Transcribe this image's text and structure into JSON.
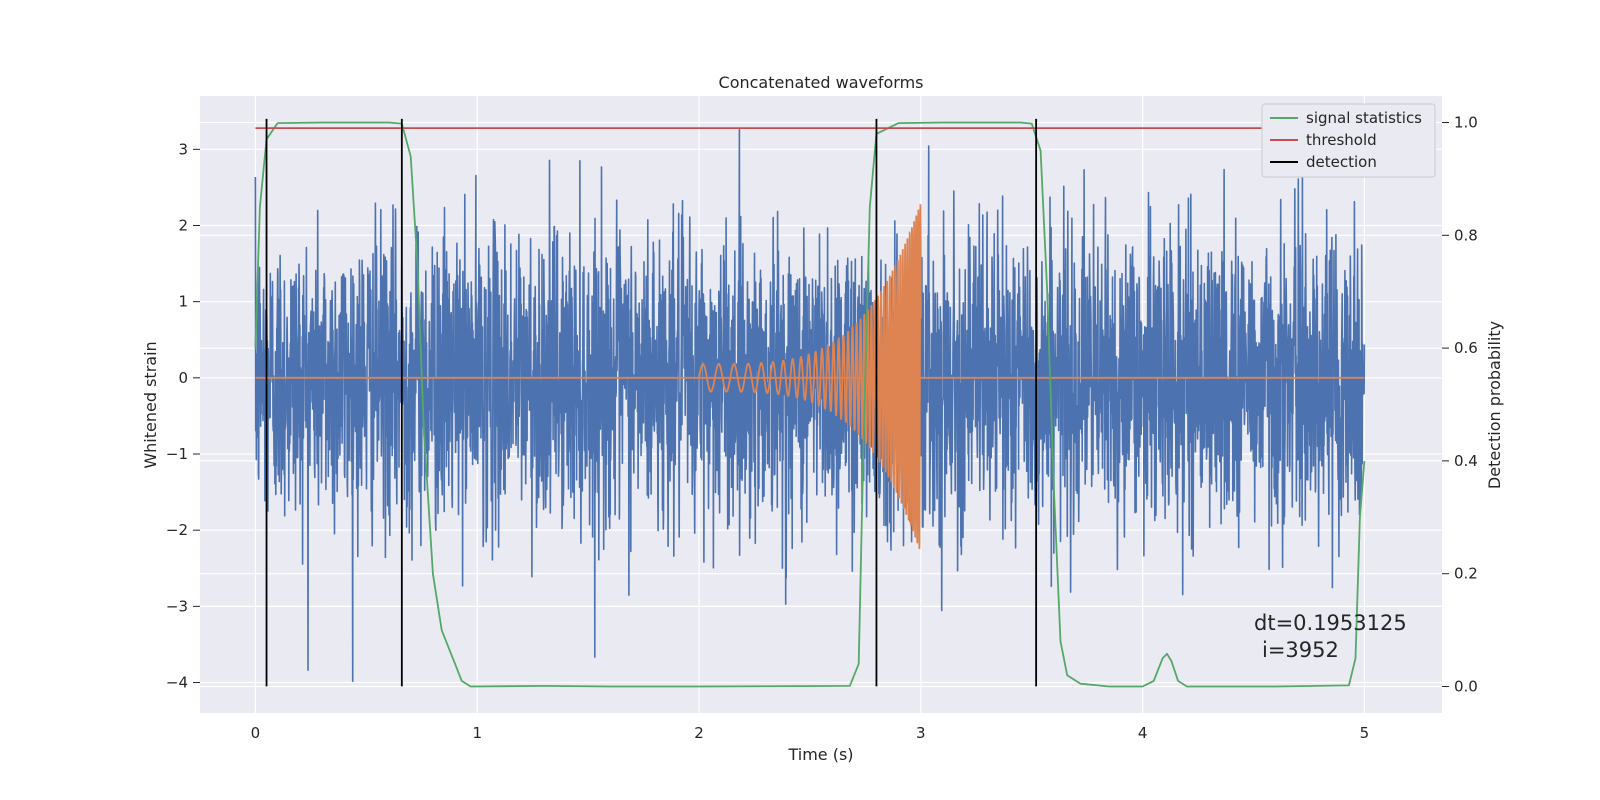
{
  "chart_data": {
    "type": "line",
    "title": "Concatenated waveforms",
    "xlabel": "Time (s)",
    "ylabel": "Whitened strain",
    "y2label": "Detection probability",
    "xlim": [
      -0.25,
      5.35
    ],
    "ylim": [
      -4.4,
      3.7
    ],
    "y2lim": [
      -0.047,
      1.047
    ],
    "x_ticks": [
      0,
      1,
      2,
      3,
      4,
      5
    ],
    "y_ticks": [
      -4,
      -3,
      -2,
      -1,
      0,
      1,
      2,
      3
    ],
    "y2_ticks": [
      0.0,
      0.2,
      0.4,
      0.6,
      0.8,
      1.0
    ],
    "grid": true,
    "legend_position": "top-right",
    "legend": [
      {
        "label": "signal statistics",
        "color": "#55a868"
      },
      {
        "label": "threshold",
        "color": "#c44e52"
      },
      {
        "label": "detection",
        "color": "#000000"
      }
    ],
    "noise": {
      "color": "#4c72b0",
      "x_range": [
        0,
        5
      ],
      "samples": 4096,
      "std": 0.95,
      "max": 3.35,
      "min": -4.05
    },
    "chirp": {
      "color": "#dd8452",
      "x_start": 2.0,
      "x_end": 3.0,
      "amp_start": 0.18,
      "amp_end": 2.3,
      "freq_start": 14,
      "freq_end": 110,
      "baseline": [
        [
          0,
          0
        ],
        [
          2.0,
          0
        ],
        [
          3.0,
          0
        ],
        [
          5.0,
          0
        ]
      ]
    },
    "signal_statistics": {
      "color": "#55a868",
      "points": [
        [
          0,
          0.6
        ],
        [
          0.02,
          0.85
        ],
        [
          0.05,
          0.97
        ],
        [
          0.1,
          0.999
        ],
        [
          0.3,
          1.0
        ],
        [
          0.6,
          1.0
        ],
        [
          0.66,
          0.998
        ],
        [
          0.7,
          0.94
        ],
        [
          0.73,
          0.75
        ],
        [
          0.76,
          0.45
        ],
        [
          0.8,
          0.2
        ],
        [
          0.84,
          0.1
        ],
        [
          0.88,
          0.06
        ],
        [
          0.9,
          0.04
        ],
        [
          0.93,
          0.01
        ],
        [
          0.97,
          0.0
        ],
        [
          1.3,
          0.001
        ],
        [
          1.6,
          0.0
        ],
        [
          2.0,
          0.0
        ],
        [
          2.68,
          0.001
        ],
        [
          2.72,
          0.04
        ],
        [
          2.74,
          0.4
        ],
        [
          2.77,
          0.85
        ],
        [
          2.8,
          0.98
        ],
        [
          2.9,
          0.999
        ],
        [
          3.1,
          1.0
        ],
        [
          3.45,
          1.0
        ],
        [
          3.5,
          0.998
        ],
        [
          3.54,
          0.95
        ],
        [
          3.57,
          0.7
        ],
        [
          3.6,
          0.35
        ],
        [
          3.63,
          0.08
        ],
        [
          3.66,
          0.02
        ],
        [
          3.72,
          0.005
        ],
        [
          3.85,
          0.0
        ],
        [
          4.0,
          0.0
        ],
        [
          4.05,
          0.01
        ],
        [
          4.09,
          0.05
        ],
        [
          4.11,
          0.058
        ],
        [
          4.13,
          0.045
        ],
        [
          4.16,
          0.01
        ],
        [
          4.2,
          0.0
        ],
        [
          4.6,
          0.0
        ],
        [
          4.93,
          0.002
        ],
        [
          4.96,
          0.05
        ],
        [
          4.98,
          0.3
        ],
        [
          5.0,
          0.4
        ]
      ]
    },
    "threshold": {
      "color": "#c44e52",
      "value": 0.99,
      "x_range": [
        0,
        5
      ]
    },
    "detections": {
      "color": "#000000",
      "x": [
        0.05,
        0.66,
        2.8,
        3.52
      ],
      "y_range": [
        -4.05,
        3.4
      ]
    },
    "annotation": {
      "line1": "dt=0.1953125",
      "line2": "i=3952",
      "x": 4.5,
      "y": -3.3
    }
  }
}
